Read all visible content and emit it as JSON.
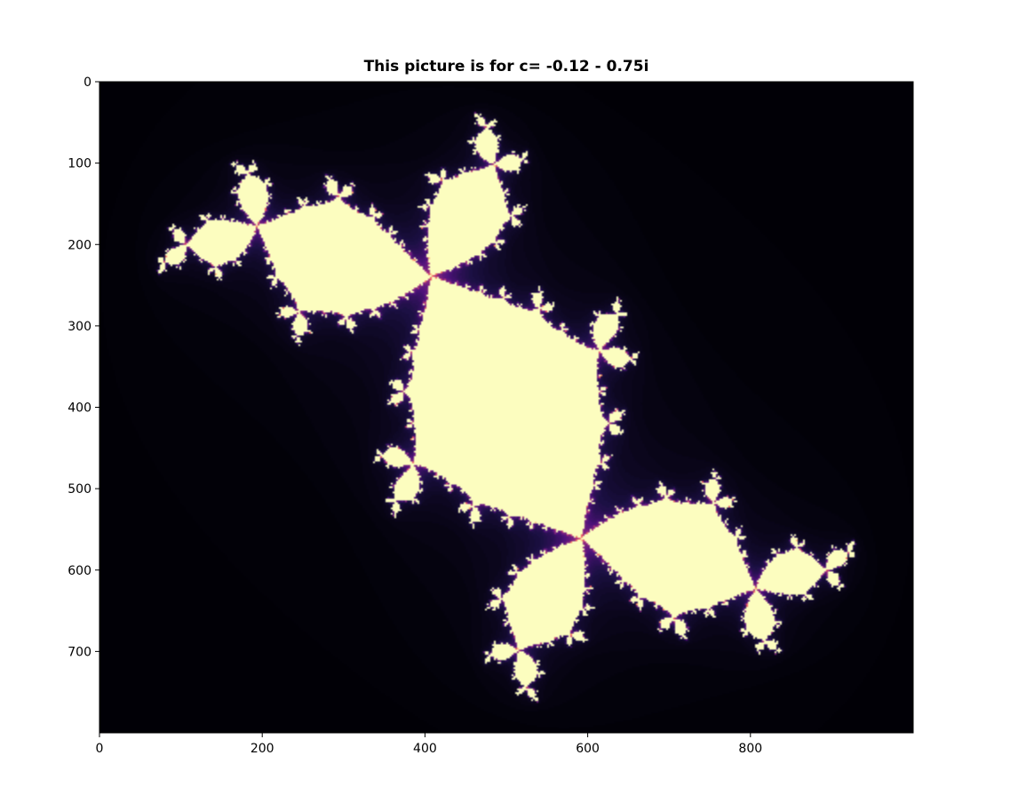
{
  "chart_data": {
    "type": "heatmap",
    "title": "This picture is for c= -0.12 - 0.75i",
    "xlabel": "",
    "ylabel": "",
    "xlim": [
      0,
      1000
    ],
    "ylim": [
      800,
      0
    ],
    "x_ticks": [
      0,
      200,
      400,
      600,
      800
    ],
    "y_ticks": [
      0,
      100,
      200,
      300,
      400,
      500,
      600,
      700
    ],
    "colormap": "magma",
    "background_color": "#000004",
    "set_color": "#fcfdbf",
    "boundary_color": "#b73779",
    "c_real": -0.12,
    "c_imag": -0.75,
    "max_iterations": 60,
    "grid": false,
    "legend": "none",
    "colorbar": false
  }
}
